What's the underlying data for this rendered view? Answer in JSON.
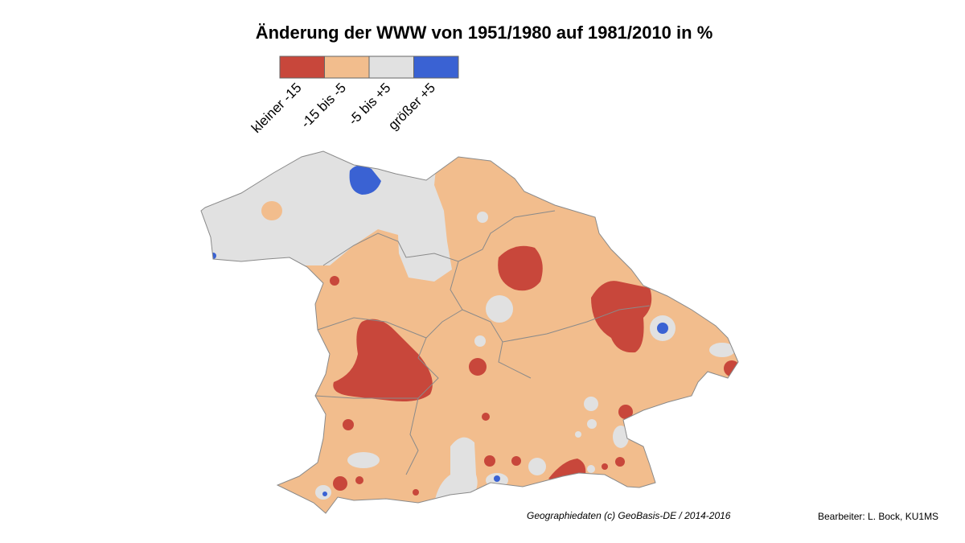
{
  "title": "Änderung der WWW von 1951/1980 auf 1981/2010 in %",
  "legend": [
    {
      "label": "kleiner -15",
      "color": "#c8473b"
    },
    {
      "label": "-15 bis -5",
      "color": "#f2bd8d"
    },
    {
      "label": "-5 bis +5",
      "color": "#e1e1e1"
    },
    {
      "label": "größer +5",
      "color": "#3a62d3"
    }
  ],
  "credits": {
    "source": "Geographiedaten (c) GeoBasis-DE / 2014-2016",
    "author": "Bearbeiter: L. Bock, KU1MS"
  }
}
